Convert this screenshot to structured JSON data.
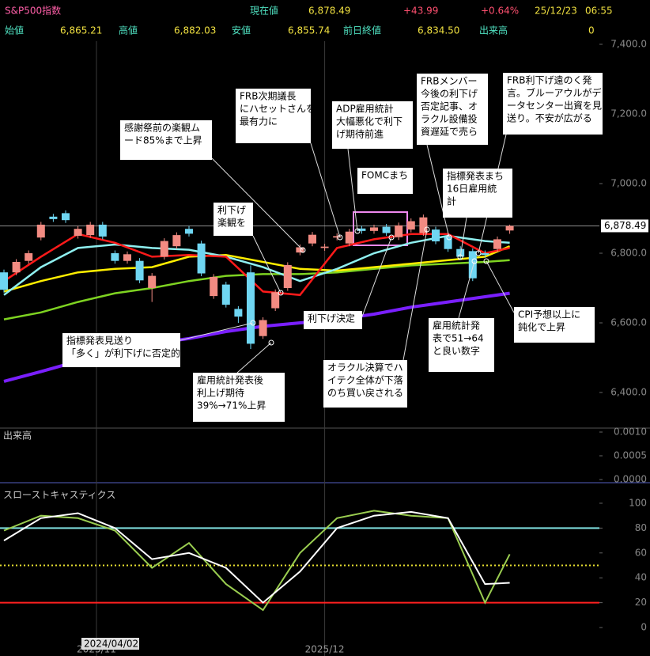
{
  "header": {
    "title": "S&P500指数",
    "current_label": "現在値",
    "current_value": "6,878.49",
    "change": "+43.99",
    "change_pct": "+0.64%",
    "date": "25/12/23",
    "time": "06:55",
    "stats": [
      {
        "label": "始値",
        "value": "6,865.21"
      },
      {
        "label": "高値",
        "value": "6,882.03"
      },
      {
        "label": "安値",
        "value": "6,855.74"
      },
      {
        "label": "前日終値",
        "value": "6,834.50"
      },
      {
        "label": "出来高",
        "value": "0"
      }
    ]
  },
  "cursor_label": "2024/04/02",
  "annotations": [
    {
      "lines": [
        "感謝祭前の楽観ム",
        "ード85%まで上昇"
      ]
    },
    {
      "lines": [
        "FRB次期議長",
        "にハセットさんを",
        "最有力に"
      ]
    },
    {
      "lines": [
        "ADP雇用統計",
        "大幅悪化で利下",
        "げ期待前進"
      ]
    },
    {
      "lines": [
        "FRBメンバー",
        "今後の利下げ",
        "否定記事、オ",
        "ラクル設備投",
        "資遅延で売ら"
      ]
    },
    {
      "lines": [
        "FRB利下げ遠のく発",
        "言。ブルーアウルがデ",
        "ータセンター出資を見",
        "送り。不安が広がる"
      ]
    },
    {
      "lines": [
        "FOMCまち"
      ]
    },
    {
      "lines": [
        "指標発表まち",
        "16日雇用統",
        "計"
      ]
    },
    {
      "lines": [
        "利下げ",
        "楽観を"
      ]
    },
    {
      "lines": [
        "CPI予想以上に",
        "鈍化で上昇"
      ]
    },
    {
      "lines": [
        "利下げ決定"
      ]
    },
    {
      "lines": [
        "雇用統計発",
        "表で51→64",
        "と良い数字"
      ]
    },
    {
      "lines": [
        "指標発表見送り",
        "「多く」が利下げに否定的"
      ]
    },
    {
      "lines": [
        "雇用統計発表後",
        "利上げ期待",
        "39%→71%上昇"
      ]
    },
    {
      "lines": [
        "オラクル決算でハ",
        "イテク全体が下落",
        "のち買い戻される"
      ]
    }
  ],
  "chart_data": [
    {
      "type": "candlestick",
      "x": [
        0,
        1,
        2,
        3,
        4,
        5,
        6,
        7,
        8,
        9,
        10,
        11,
        12,
        13,
        14,
        15,
        16,
        17,
        18,
        19,
        20,
        21,
        22,
        23,
        24,
        25,
        26,
        27,
        28,
        29,
        30,
        31,
        32,
        33,
        34,
        35,
        36,
        37,
        38,
        39,
        40,
        41
      ],
      "open": [
        6745,
        6745,
        6778,
        6845,
        6905,
        6915,
        6850,
        6852,
        6882,
        6800,
        6778,
        6778,
        6700,
        6790,
        6820,
        6870,
        6828,
        6677,
        6710,
        6640,
        6745,
        6562,
        6642,
        6700,
        6802,
        6828,
        6815,
        6845,
        6828,
        6871,
        6864,
        6876,
        6846,
        6868,
        6858,
        6868,
        6846,
        6812,
        6806,
        6800,
        6812,
        6865.21
      ],
      "high": [
        6753,
        6783,
        6808,
        6890,
        6913,
        6923,
        6878,
        6890,
        6890,
        6808,
        6805,
        6786,
        6743,
        6843,
        6860,
        6878,
        6836,
        6740,
        6718,
        6648,
        6765,
        6616,
        6696,
        6774,
        6825,
        6861,
        6827,
        6857,
        6870,
        6879,
        6882,
        6884,
        6888,
        6900,
        6911,
        6876,
        6854,
        6820,
        6814,
        6808,
        6848,
        6882.03
      ],
      "low": [
        6687,
        6737,
        6770,
        6837,
        6890,
        6887,
        6842,
        6844,
        6840,
        6770,
        6770,
        6714,
        6660,
        6782,
        6812,
        6848,
        6734,
        6669,
        6644,
        6600,
        6525,
        6554,
        6634,
        6692,
        6794,
        6820,
        6807,
        6837,
        6820,
        6856,
        6856,
        6850,
        6838,
        6860,
        6850,
        6826,
        6804,
        6782,
        6720,
        6787,
        6804,
        6855.74
      ],
      "close": [
        6695,
        6775,
        6800,
        6882,
        6898,
        6895,
        6870,
        6882,
        6848,
        6778,
        6797,
        6722,
        6735,
        6835,
        6852,
        6856,
        6742,
        6732,
        6652,
        6618,
        6540,
        6608,
        6688,
        6766,
        6817,
        6853,
        6819,
        6849,
        6862,
        6864,
        6874,
        6858,
        6880,
        6892,
        6903,
        6834,
        6812,
        6790,
        6728,
        6795,
        6840,
        6878.49
      ],
      "up_color": "#f28b82",
      "down_color": "#6fd6f2",
      "series": [
        {
          "color": "#7a1fff",
          "x": [
            0,
            3,
            6,
            9,
            12,
            15,
            18,
            21,
            24,
            27,
            30,
            33,
            36,
            39,
            41
          ],
          "values": [
            6432,
            6460,
            6490,
            6515,
            6540,
            6555,
            6575,
            6590,
            6600,
            6610,
            6625,
            6645,
            6660,
            6675,
            6685
          ]
        },
        {
          "color": "#7ed321",
          "x": [
            0,
            3,
            6,
            9,
            12,
            15,
            18,
            21,
            24,
            27,
            30,
            33,
            36,
            39,
            41
          ],
          "values": [
            6610,
            6630,
            6660,
            6685,
            6700,
            6720,
            6735,
            6740,
            6740,
            6745,
            6755,
            6765,
            6770,
            6775,
            6780
          ]
        },
        {
          "color": "#ffee00",
          "x": [
            0,
            3,
            6,
            9,
            12,
            15,
            18,
            21,
            24,
            27,
            30,
            33,
            36,
            39,
            41
          ],
          "values": [
            6690,
            6720,
            6745,
            6755,
            6760,
            6790,
            6795,
            6775,
            6755,
            6750,
            6760,
            6770,
            6780,
            6790,
            6820
          ]
        },
        {
          "color": "#8ff0f0",
          "x": [
            0,
            3,
            6,
            9,
            12,
            15,
            18,
            21,
            24,
            27,
            30,
            33,
            36,
            39,
            41
          ],
          "values": [
            6680,
            6760,
            6815,
            6825,
            6815,
            6810,
            6790,
            6760,
            6720,
            6755,
            6800,
            6830,
            6850,
            6835,
            6830
          ]
        },
        {
          "color": "#ff1a1a",
          "x": [
            0,
            3,
            6,
            9,
            12,
            15,
            18,
            21,
            24,
            27,
            30,
            33,
            36,
            39,
            41
          ],
          "values": [
            6720,
            6790,
            6855,
            6830,
            6790,
            6795,
            6790,
            6690,
            6680,
            6815,
            6840,
            6855,
            6855,
            6800,
            6815
          ]
        }
      ],
      "price_line": {
        "value": 6878.49,
        "label": "6,878.49",
        "color": "#cccccc"
      },
      "xlim": [
        -0.32,
        48.27
      ],
      "ylim": [
        6300,
        7413.6
      ],
      "xticks": [
        {
          "value": 7.5,
          "label": "2025/11"
        },
        {
          "value": 26,
          "label": "2025/12"
        }
      ],
      "yticks": [
        {
          "value": 7400,
          "label": "7,400.0"
        },
        {
          "value": 7200,
          "label": "7,200.0"
        },
        {
          "value": 7000,
          "label": "7,000.0"
        },
        {
          "value": 6800,
          "label": "6,800.0"
        },
        {
          "value": 6600,
          "label": "6,600.0"
        },
        {
          "value": 6400,
          "label": "6,400.0"
        }
      ]
    },
    {
      "type": "bar",
      "title": "出来高",
      "ylim": [
        -6.67e-05,
        0.0010833
      ],
      "yticks": [
        {
          "value": 0.001,
          "label": "0.0010"
        },
        {
          "value": 0.0005,
          "label": "0.0005"
        },
        {
          "value": 0,
          "label": "0.0000"
        }
      ]
    },
    {
      "type": "line",
      "title": "スローストキャスティクス",
      "x": [
        0,
        3,
        6,
        9,
        12,
        15,
        18,
        21,
        24,
        27,
        30,
        33,
        36,
        39,
        41
      ],
      "series": [
        {
          "color": "#9acd50",
          "values": [
            78,
            90,
            88,
            78,
            48,
            68,
            35,
            14,
            60,
            88,
            94,
            90,
            88,
            20,
            59
          ]
        },
        {
          "color": "#ffffff",
          "values": [
            70,
            88,
            92,
            80,
            55,
            60,
            48,
            20,
            45,
            80,
            90,
            93,
            88,
            35,
            36
          ]
        }
      ],
      "hlines": [
        {
          "value": 80,
          "color": "#7fe0e0"
        },
        {
          "value": 50,
          "color": "#e8e030",
          "style": "dotted"
        },
        {
          "value": 20,
          "color": "#ff2020"
        }
      ],
      "xlim": [
        -0.32,
        48.27
      ],
      "ylim": [
        -22.9,
        112.7
      ],
      "yticks": [
        0,
        20,
        40,
        60,
        80,
        100
      ]
    }
  ]
}
